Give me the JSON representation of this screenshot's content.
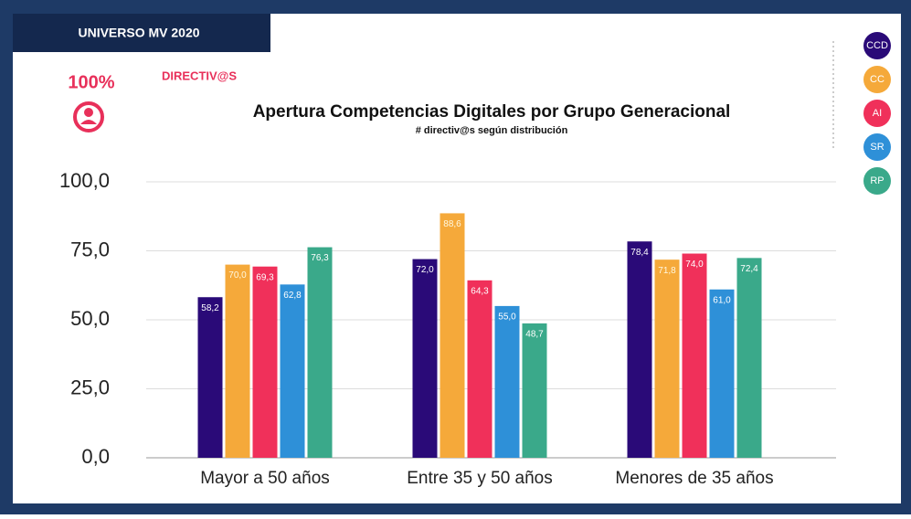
{
  "header": {
    "badge": "UNIVERSO MV 2020",
    "percent": "100%",
    "segment": "DIRECTIV@S"
  },
  "chart_data": {
    "type": "bar",
    "title": "Apertura Competencias Digitales por Grupo Generacional",
    "subtitle": "# directiv@s según distribución",
    "categories": [
      "Mayor a 50 años",
      "Entre 35 y 50 años",
      "Menores de 35 años"
    ],
    "series": [
      {
        "name": "CCD",
        "color": "#2a0a78",
        "values": [
          58.2,
          72.0,
          78.4
        ],
        "value_labels": [
          "58,2",
          "72,0",
          "78,4"
        ]
      },
      {
        "name": "CC",
        "color": "#f5a93a",
        "values": [
          70.0,
          88.6,
          71.8
        ],
        "value_labels": [
          "70,0",
          "88,6",
          "71,8"
        ]
      },
      {
        "name": "AI",
        "color": "#f0305a",
        "values": [
          69.3,
          64.3,
          74.0
        ],
        "value_labels": [
          "69,3",
          "64,3",
          "74,0"
        ]
      },
      {
        "name": "SR",
        "color": "#2e90d8",
        "values": [
          62.8,
          55.0,
          61.0
        ],
        "value_labels": [
          "62,8",
          "55,0",
          "61,0"
        ]
      },
      {
        "name": "RP",
        "color": "#3aa98a",
        "values": [
          76.3,
          48.7,
          72.4
        ],
        "value_labels": [
          "76,3",
          "48,7",
          "72,4"
        ]
      }
    ],
    "ylim": [
      0,
      100
    ],
    "yticks": [
      {
        "value": 0,
        "label": "0,0"
      },
      {
        "value": 25,
        "label": "25,0"
      },
      {
        "value": 50,
        "label": "50,0"
      },
      {
        "value": 75,
        "label": "75,0"
      },
      {
        "value": 100,
        "label": "100,0"
      }
    ],
    "grid": true,
    "legend": "right"
  }
}
